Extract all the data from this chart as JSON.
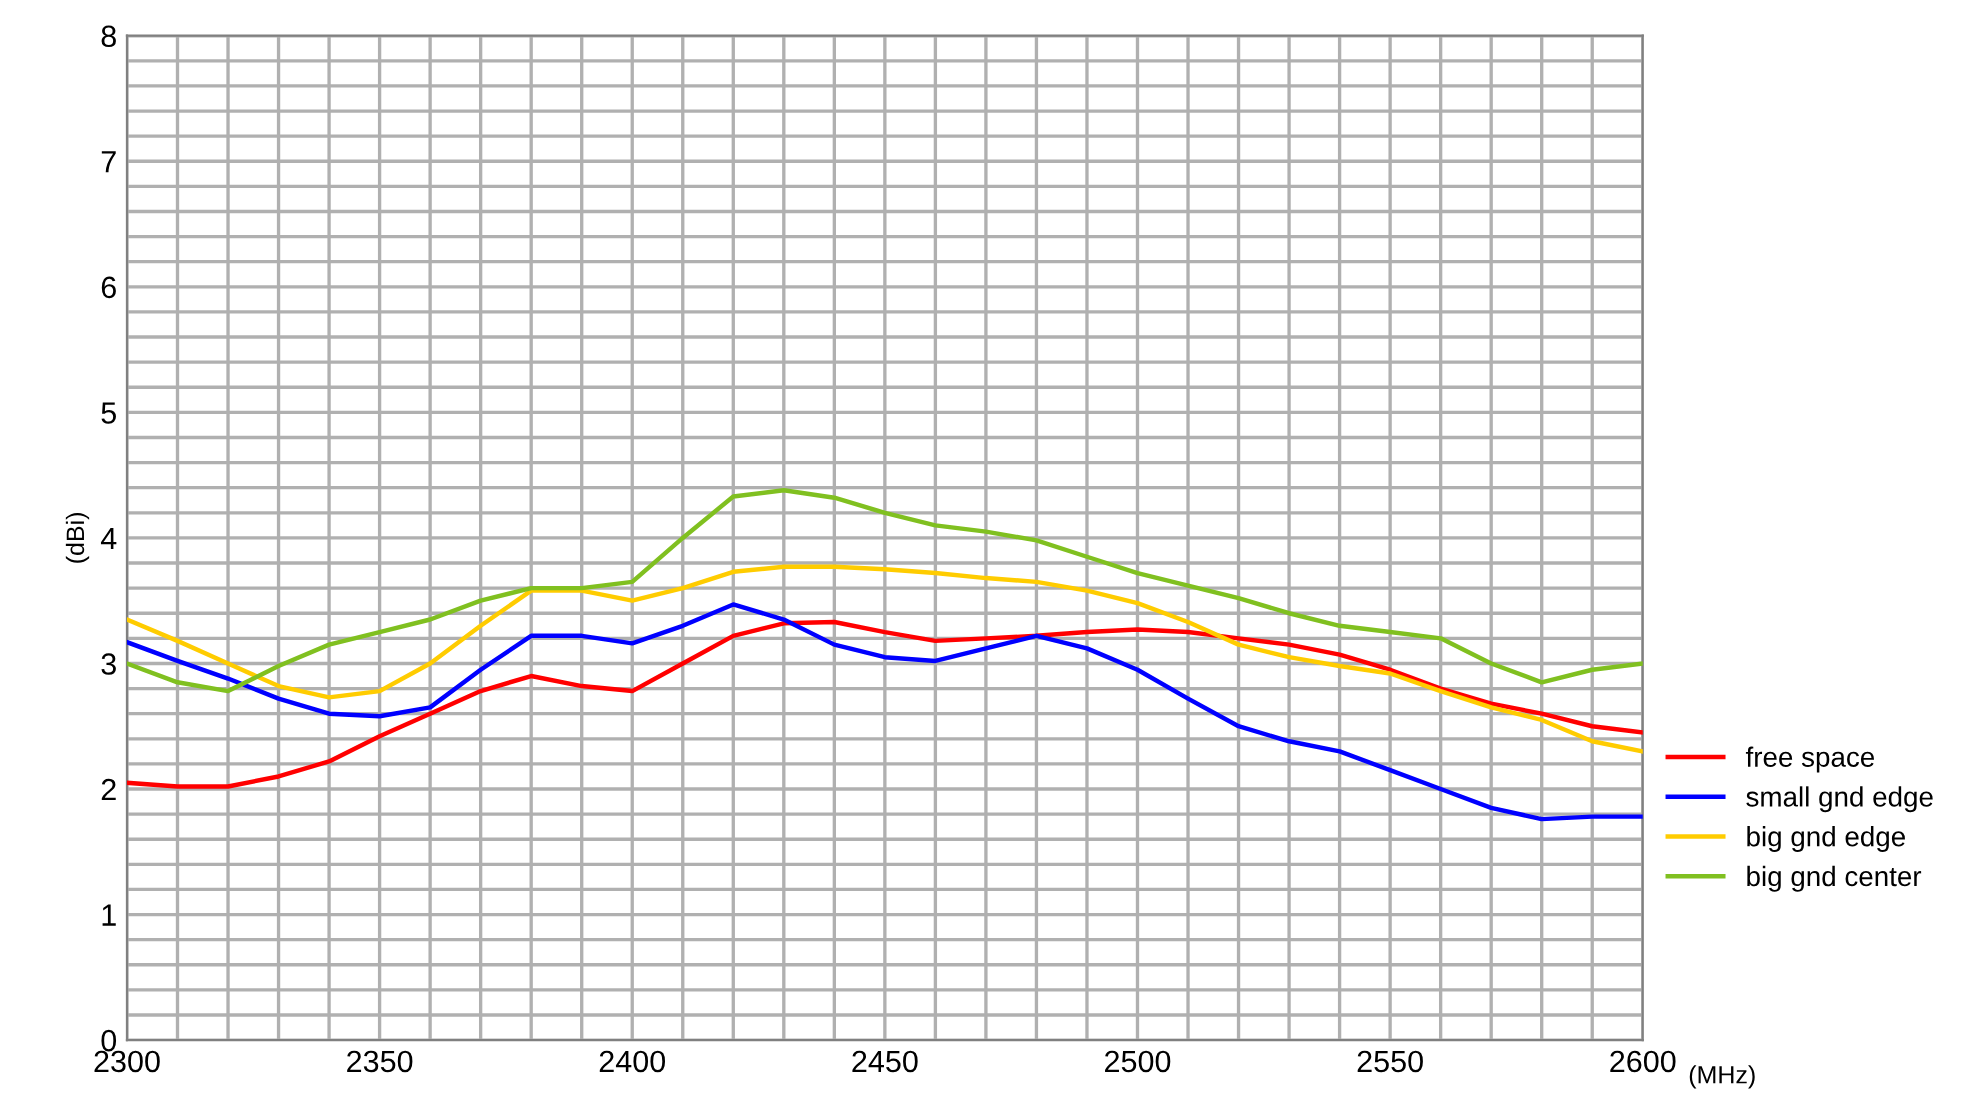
{
  "chart_data": {
    "type": "line",
    "xlabel": "(MHz)",
    "ylabel": "(dBi)",
    "x": [
      2300,
      2310,
      2320,
      2330,
      2340,
      2350,
      2360,
      2370,
      2380,
      2390,
      2400,
      2410,
      2420,
      2430,
      2440,
      2450,
      2460,
      2470,
      2480,
      2490,
      2500,
      2510,
      2520,
      2530,
      2540,
      2550,
      2560,
      2570,
      2580,
      2590,
      2600
    ],
    "series": [
      {
        "name": "free space",
        "color": "#ff0000",
        "values": [
          2.05,
          2.02,
          2.02,
          2.1,
          2.22,
          2.42,
          2.6,
          2.78,
          2.9,
          2.82,
          2.78,
          3.0,
          3.22,
          3.32,
          3.33,
          3.25,
          3.18,
          3.2,
          3.22,
          3.25,
          3.27,
          3.25,
          3.2,
          3.15,
          3.07,
          2.95,
          2.8,
          2.68,
          2.6,
          2.5,
          2.45
        ]
      },
      {
        "name": "small gnd edge",
        "color": "#0000ff",
        "values": [
          3.17,
          3.02,
          2.88,
          2.72,
          2.6,
          2.58,
          2.65,
          2.95,
          3.22,
          3.22,
          3.16,
          3.3,
          3.47,
          3.35,
          3.15,
          3.05,
          3.02,
          3.12,
          3.22,
          3.12,
          2.95,
          2.72,
          2.5,
          2.38,
          2.3,
          2.15,
          2.0,
          1.85,
          1.76,
          1.78,
          1.78
        ]
      },
      {
        "name": "big gnd edge",
        "color": "#ffcc00",
        "values": [
          3.35,
          3.18,
          3.0,
          2.82,
          2.73,
          2.78,
          3.0,
          3.3,
          3.58,
          3.58,
          3.5,
          3.6,
          3.73,
          3.77,
          3.77,
          3.75,
          3.72,
          3.68,
          3.65,
          3.58,
          3.48,
          3.33,
          3.15,
          3.05,
          2.98,
          2.92,
          2.78,
          2.65,
          2.55,
          2.38,
          2.3
        ]
      },
      {
        "name": "big gnd center",
        "color": "#80c020",
        "values": [
          3.0,
          2.85,
          2.78,
          2.98,
          3.15,
          3.25,
          3.35,
          3.5,
          3.6,
          3.6,
          3.65,
          4.0,
          4.33,
          4.38,
          4.32,
          4.2,
          4.1,
          4.05,
          3.98,
          3.85,
          3.72,
          3.62,
          3.52,
          3.4,
          3.3,
          3.25,
          3.2,
          3.0,
          2.85,
          2.95,
          3.0
        ]
      }
    ],
    "xlim": [
      2300,
      2600
    ],
    "xticks": [
      2300,
      {
        "value": 2310,
        "label": null
      },
      {
        "value": 2320,
        "label": null
      },
      {
        "value": 2330,
        "label": null
      },
      {
        "value": 2340,
        "label": null
      },
      2350,
      {
        "value": 2360,
        "label": null
      },
      {
        "value": 2370,
        "label": null
      },
      {
        "value": 2380,
        "label": null
      },
      {
        "value": 2390,
        "label": null
      },
      2400,
      {
        "value": 2410,
        "label": null
      },
      {
        "value": 2420,
        "label": null
      },
      {
        "value": 2430,
        "label": null
      },
      {
        "value": 2440,
        "label": null
      },
      2450,
      {
        "value": 2460,
        "label": null
      },
      {
        "value": 2470,
        "label": null
      },
      {
        "value": 2480,
        "label": null
      },
      {
        "value": 2490,
        "label": null
      },
      2500,
      {
        "value": 2510,
        "label": null
      },
      {
        "value": 2520,
        "label": null
      },
      {
        "value": 2530,
        "label": null
      },
      {
        "value": 2540,
        "label": null
      },
      2550,
      {
        "value": 2560,
        "label": null
      },
      {
        "value": 2570,
        "label": null
      },
      {
        "value": 2580,
        "label": null
      },
      {
        "value": 2590,
        "label": null
      },
      2600
    ],
    "ylim": [
      0,
      8
    ],
    "yticks": [
      0,
      {
        "value": 0.2,
        "label": null
      },
      {
        "value": 0.4,
        "label": null
      },
      {
        "value": 0.6,
        "label": null
      },
      {
        "value": 0.8,
        "label": null
      },
      1,
      {
        "value": 1.2,
        "label": null
      },
      {
        "value": 1.4,
        "label": null
      },
      {
        "value": 1.6,
        "label": null
      },
      {
        "value": 1.8,
        "label": null
      },
      2,
      {
        "value": 2.2,
        "label": null
      },
      {
        "value": 2.4,
        "label": null
      },
      {
        "value": 2.6,
        "label": null
      },
      {
        "value": 2.8,
        "label": null
      },
      3,
      {
        "value": 3.2,
        "label": null
      },
      {
        "value": 3.4,
        "label": null
      },
      {
        "value": 3.6,
        "label": null
      },
      {
        "value": 3.8,
        "label": null
      },
      4,
      {
        "value": 4.2,
        "label": null
      },
      {
        "value": 4.4,
        "label": null
      },
      {
        "value": 4.6,
        "label": null
      },
      {
        "value": 4.8,
        "label": null
      },
      5,
      {
        "value": 5.2,
        "label": null
      },
      {
        "value": 5.4,
        "label": null
      },
      {
        "value": 5.6,
        "label": null
      },
      {
        "value": 5.8,
        "label": null
      },
      6,
      {
        "value": 6.2,
        "label": null
      },
      {
        "value": 6.4,
        "label": null
      },
      {
        "value": 6.6,
        "label": null
      },
      {
        "value": 6.8,
        "label": null
      },
      7,
      {
        "value": 7.2,
        "label": null
      },
      {
        "value": 7.4,
        "label": null
      },
      {
        "value": 7.6,
        "label": null
      },
      {
        "value": 7.8,
        "label": null
      },
      8
    ],
    "grid": true,
    "legend": "right",
    "marker": "none",
    "line_style": "solid"
  }
}
